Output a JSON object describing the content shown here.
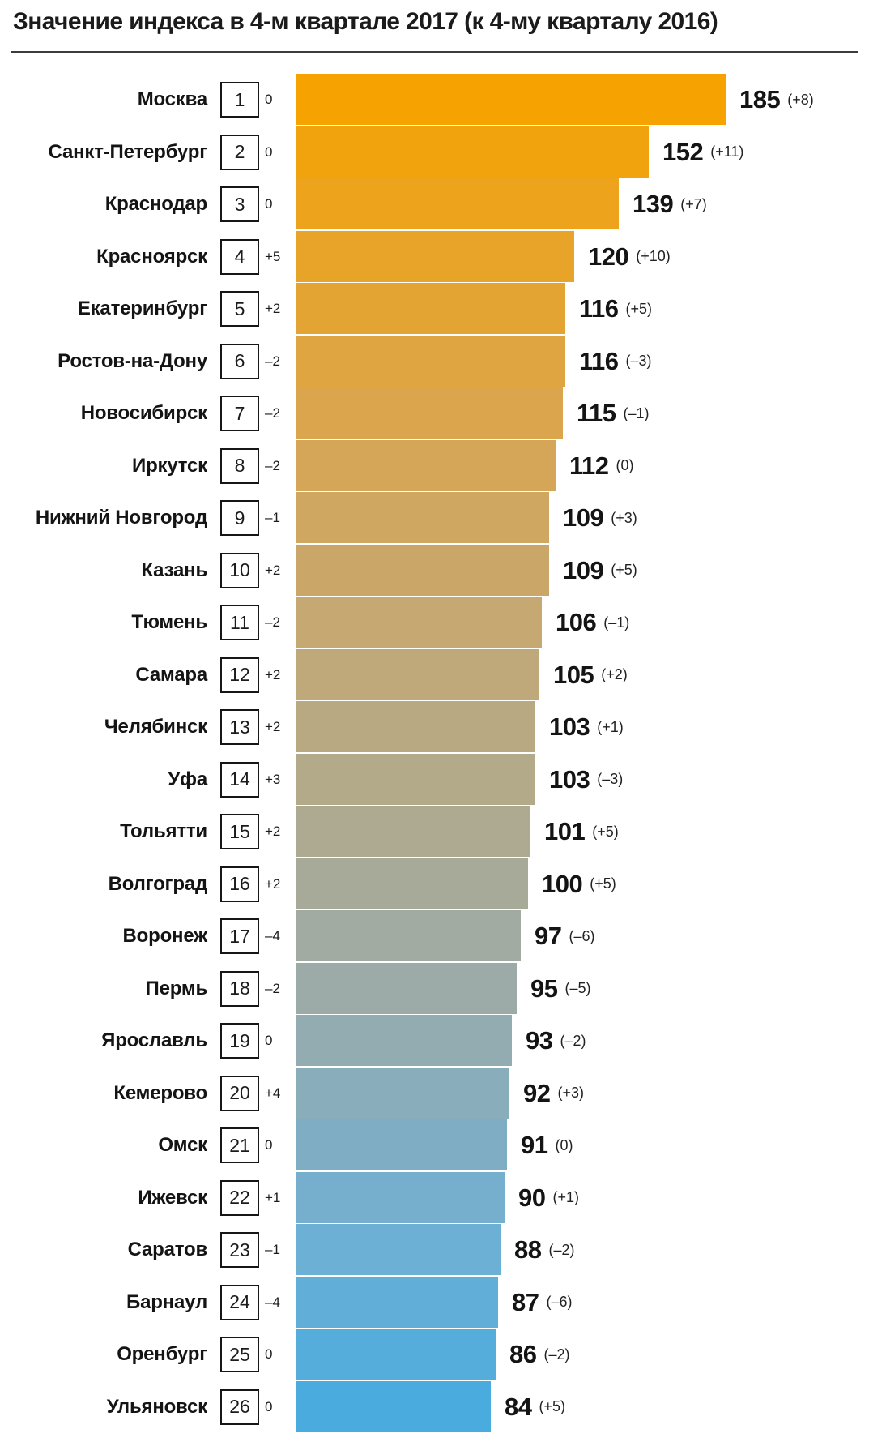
{
  "title": "Значение индекса в 4-м квартале 2017 (к 4-му кварталу 2016)",
  "chart_data": {
    "type": "bar",
    "orientation": "horizontal",
    "title": "Значение индекса в 4-м квартале 2017 (к 4-му кварталу 2016)",
    "xlim": [
      0,
      185
    ],
    "legend": "none",
    "grid": "off",
    "palette_top_color": "#F6A201",
    "palette_bottom_color": "#4AACDE",
    "categories": [
      "Москва",
      "Санкт-Петербург",
      "Краснодар",
      "Красноярск",
      "Екатеринбург",
      "Ростов-на-Дону",
      "Новосибирск",
      "Иркутск",
      "Нижний Новгород",
      "Казань",
      "Тюмень",
      "Самара",
      "Челябинск",
      "Уфа",
      "Тольятти",
      "Волгоград",
      "Воронеж",
      "Пермь",
      "Ярославль",
      "Кемерово",
      "Омск",
      "Ижевск",
      "Саратов",
      "Барнаул",
      "Оренбург",
      "Ульяновск"
    ],
    "series": [
      {
        "name": "index_value_q4_2017",
        "values": [
          185,
          152,
          139,
          120,
          116,
          116,
          115,
          112,
          109,
          109,
          106,
          105,
          103,
          103,
          101,
          100,
          97,
          95,
          93,
          92,
          91,
          90,
          88,
          87,
          86,
          84
        ]
      },
      {
        "name": "index_change_vs_q4_2016",
        "values": [
          8,
          11,
          7,
          10,
          5,
          -3,
          -1,
          0,
          3,
          5,
          -1,
          2,
          1,
          -3,
          5,
          5,
          -6,
          -5,
          -2,
          3,
          0,
          1,
          -2,
          -6,
          -2,
          5
        ]
      },
      {
        "name": "rank",
        "values": [
          1,
          2,
          3,
          4,
          5,
          6,
          7,
          8,
          9,
          10,
          11,
          12,
          13,
          14,
          15,
          16,
          17,
          18,
          19,
          20,
          21,
          22,
          23,
          24,
          25,
          26
        ]
      },
      {
        "name": "rank_change",
        "values": [
          0,
          0,
          0,
          5,
          2,
          -2,
          -2,
          -2,
          -1,
          2,
          -2,
          2,
          2,
          3,
          2,
          2,
          -4,
          -2,
          0,
          4,
          0,
          1,
          -1,
          -4,
          0,
          0
        ]
      }
    ],
    "rows": [
      {
        "city": "Москва",
        "rank": "1",
        "rank_change": "0",
        "value": 185,
        "value_label": "185",
        "value_change": "(+8)",
        "color": "#F6A201"
      },
      {
        "city": "Санкт-Петербург",
        "rank": "2",
        "rank_change": "0",
        "value": 152,
        "value_label": "152",
        "value_change": "(+11)",
        "color": "#F1A30E"
      },
      {
        "city": "Краснодар",
        "rank": "3",
        "rank_change": "0",
        "value": 139,
        "value_label": "139",
        "value_change": "(+7)",
        "color": "#EDA31B"
      },
      {
        "city": "Красноярск",
        "rank": "4",
        "rank_change": "+5",
        "value": 120,
        "value_label": "120",
        "value_change": "(+10)",
        "color": "#E8A428"
      },
      {
        "city": "Екатеринбург",
        "rank": "5",
        "rank_change": "+2",
        "value": 116,
        "value_label": "116",
        "value_change": "(+5)",
        "color": "#E4A434"
      },
      {
        "city": "Ростов-на-Дону",
        "rank": "6",
        "rank_change": "–2",
        "value": 116,
        "value_label": "116",
        "value_change": "(–3)",
        "color": "#DFA541"
      },
      {
        "city": "Новосибирск",
        "rank": "7",
        "rank_change": "–2",
        "value": 115,
        "value_label": "115",
        "value_change": "(–1)",
        "color": "#DBA54E"
      },
      {
        "city": "Иркутск",
        "rank": "8",
        "rank_change": "–2",
        "value": 112,
        "value_label": "112",
        "value_change": "(0)",
        "color": "#D5A657"
      },
      {
        "city": "Нижний Новгород",
        "rank": "9",
        "rank_change": "–1",
        "value": 109,
        "value_label": "109",
        "value_change": "(+3)",
        "color": "#D0A760"
      },
      {
        "city": "Казань",
        "rank": "10",
        "rank_change": "+2",
        "value": 109,
        "value_label": "109",
        "value_change": "(+5)",
        "color": "#CAA769"
      },
      {
        "city": "Тюмень",
        "rank": "11",
        "rank_change": "–2",
        "value": 106,
        "value_label": "106",
        "value_change": "(–1)",
        "color": "#C5A872"
      },
      {
        "city": "Самара",
        "rank": "12",
        "rank_change": "+2",
        "value": 105,
        "value_label": "105",
        "value_change": "(+2)",
        "color": "#BFA97B"
      },
      {
        "city": "Челябинск",
        "rank": "13",
        "rank_change": "+2",
        "value": 103,
        "value_label": "103",
        "value_change": "(+1)",
        "color": "#B9A983"
      },
      {
        "city": "Уфа",
        "rank": "14",
        "rank_change": "+3",
        "value": 103,
        "value_label": "103",
        "value_change": "(–3)",
        "color": "#B3AA8A"
      },
      {
        "city": "Тольятти",
        "rank": "15",
        "rank_change": "+2",
        "value": 101,
        "value_label": "101",
        "value_change": "(+5)",
        "color": "#AEAA92"
      },
      {
        "city": "Волгоград",
        "rank": "16",
        "rank_change": "+2",
        "value": 100,
        "value_label": "100",
        "value_change": "(+5)",
        "color": "#A8AA99"
      },
      {
        "city": "Воронеж",
        "rank": "17",
        "rank_change": "–4",
        "value": 97,
        "value_label": "97",
        "value_change": "(–6)",
        "color": "#A2ABA1"
      },
      {
        "city": "Пермь",
        "rank": "18",
        "rank_change": "–2",
        "value": 95,
        "value_label": "95",
        "value_change": "(–5)",
        "color": "#9CABA8"
      },
      {
        "city": "Ярославль",
        "rank": "19",
        "rank_change": "0",
        "value": 93,
        "value_label": "93",
        "value_change": "(–2)",
        "color": "#92ACB1"
      },
      {
        "city": "Кемерово",
        "rank": "20",
        "rank_change": "+4",
        "value": 92,
        "value_label": "92",
        "value_change": "(+3)",
        "color": "#89ADBA"
      },
      {
        "city": "Омск",
        "rank": "21",
        "rank_change": "0",
        "value": 91,
        "value_label": "91",
        "value_change": "(0)",
        "color": "#7FAEC4"
      },
      {
        "city": "Ижевск",
        "rank": "22",
        "rank_change": "+1",
        "value": 90,
        "value_label": "90",
        "value_change": "(+1)",
        "color": "#76AFCD"
      },
      {
        "city": "Саратов",
        "rank": "23",
        "rank_change": "–1",
        "value": 88,
        "value_label": "88",
        "value_change": "(–2)",
        "color": "#6CB0D6"
      },
      {
        "city": "Барнаул",
        "rank": "24",
        "rank_change": "–4",
        "value": 87,
        "value_label": "87",
        "value_change": "(–6)",
        "color": "#61AFD9"
      },
      {
        "city": "Оренбург",
        "rank": "25",
        "rank_change": "0",
        "value": 86,
        "value_label": "86",
        "value_change": "(–2)",
        "color": "#55ADDB"
      },
      {
        "city": "Ульяновск",
        "rank": "26",
        "rank_change": "0",
        "value": 84,
        "value_label": "84",
        "value_change": "(+5)",
        "color": "#4AACDE"
      }
    ]
  }
}
